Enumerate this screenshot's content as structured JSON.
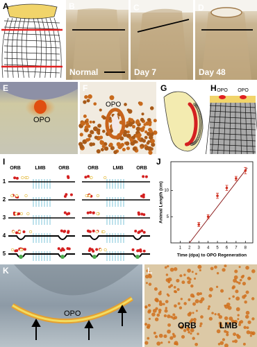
{
  "panels": {
    "A": {
      "label": "A"
    },
    "B": {
      "label": "B",
      "caption": "Normal"
    },
    "C": {
      "label": "C",
      "caption": "Day 7"
    },
    "D": {
      "label": "D",
      "caption": "Day 48"
    },
    "E": {
      "label": "E",
      "text": "OPO"
    },
    "F": {
      "label": "F",
      "text": "OPO"
    },
    "G": {
      "label": "G"
    },
    "H": {
      "label": "H",
      "text": [
        "OPO",
        "OPO"
      ]
    },
    "I": {
      "label": "I",
      "columns": [
        "ORB",
        "LMB",
        "ORB",
        "ORB",
        "LMB",
        "ORB"
      ],
      "rows": [
        "1",
        "2",
        "3",
        "4",
        "5"
      ]
    },
    "K": {
      "label": "K",
      "text": "OPO"
    },
    "L": {
      "label": "L",
      "text": [
        "ORB",
        "LMB"
      ]
    }
  },
  "chart_data": {
    "type": "scatter",
    "label": "J",
    "xlabel": "Time (dpa) to OPO Regeneration",
    "ylabel": "Animal Length (cm)",
    "x": [
      3,
      4,
      5,
      6,
      7,
      8
    ],
    "series": [
      {
        "values": [
          3.5,
          5,
          9,
          10.5,
          12.3,
          13.8
        ],
        "errors": [
          0.4,
          0.4,
          0.5,
          0.5,
          0.4,
          0.6
        ],
        "color": "#d03020"
      }
    ],
    "fit": {
      "x": [
        2,
        8.2
      ],
      "y": [
        0,
        14.3
      ],
      "color": "#8b1a1a"
    },
    "xlim": [
      0,
      8.8
    ],
    "ylim": [
      0,
      15.5
    ],
    "xticks": [
      1,
      2,
      3,
      4,
      5,
      6,
      7,
      8
    ],
    "yticks": [
      5,
      10
    ]
  }
}
